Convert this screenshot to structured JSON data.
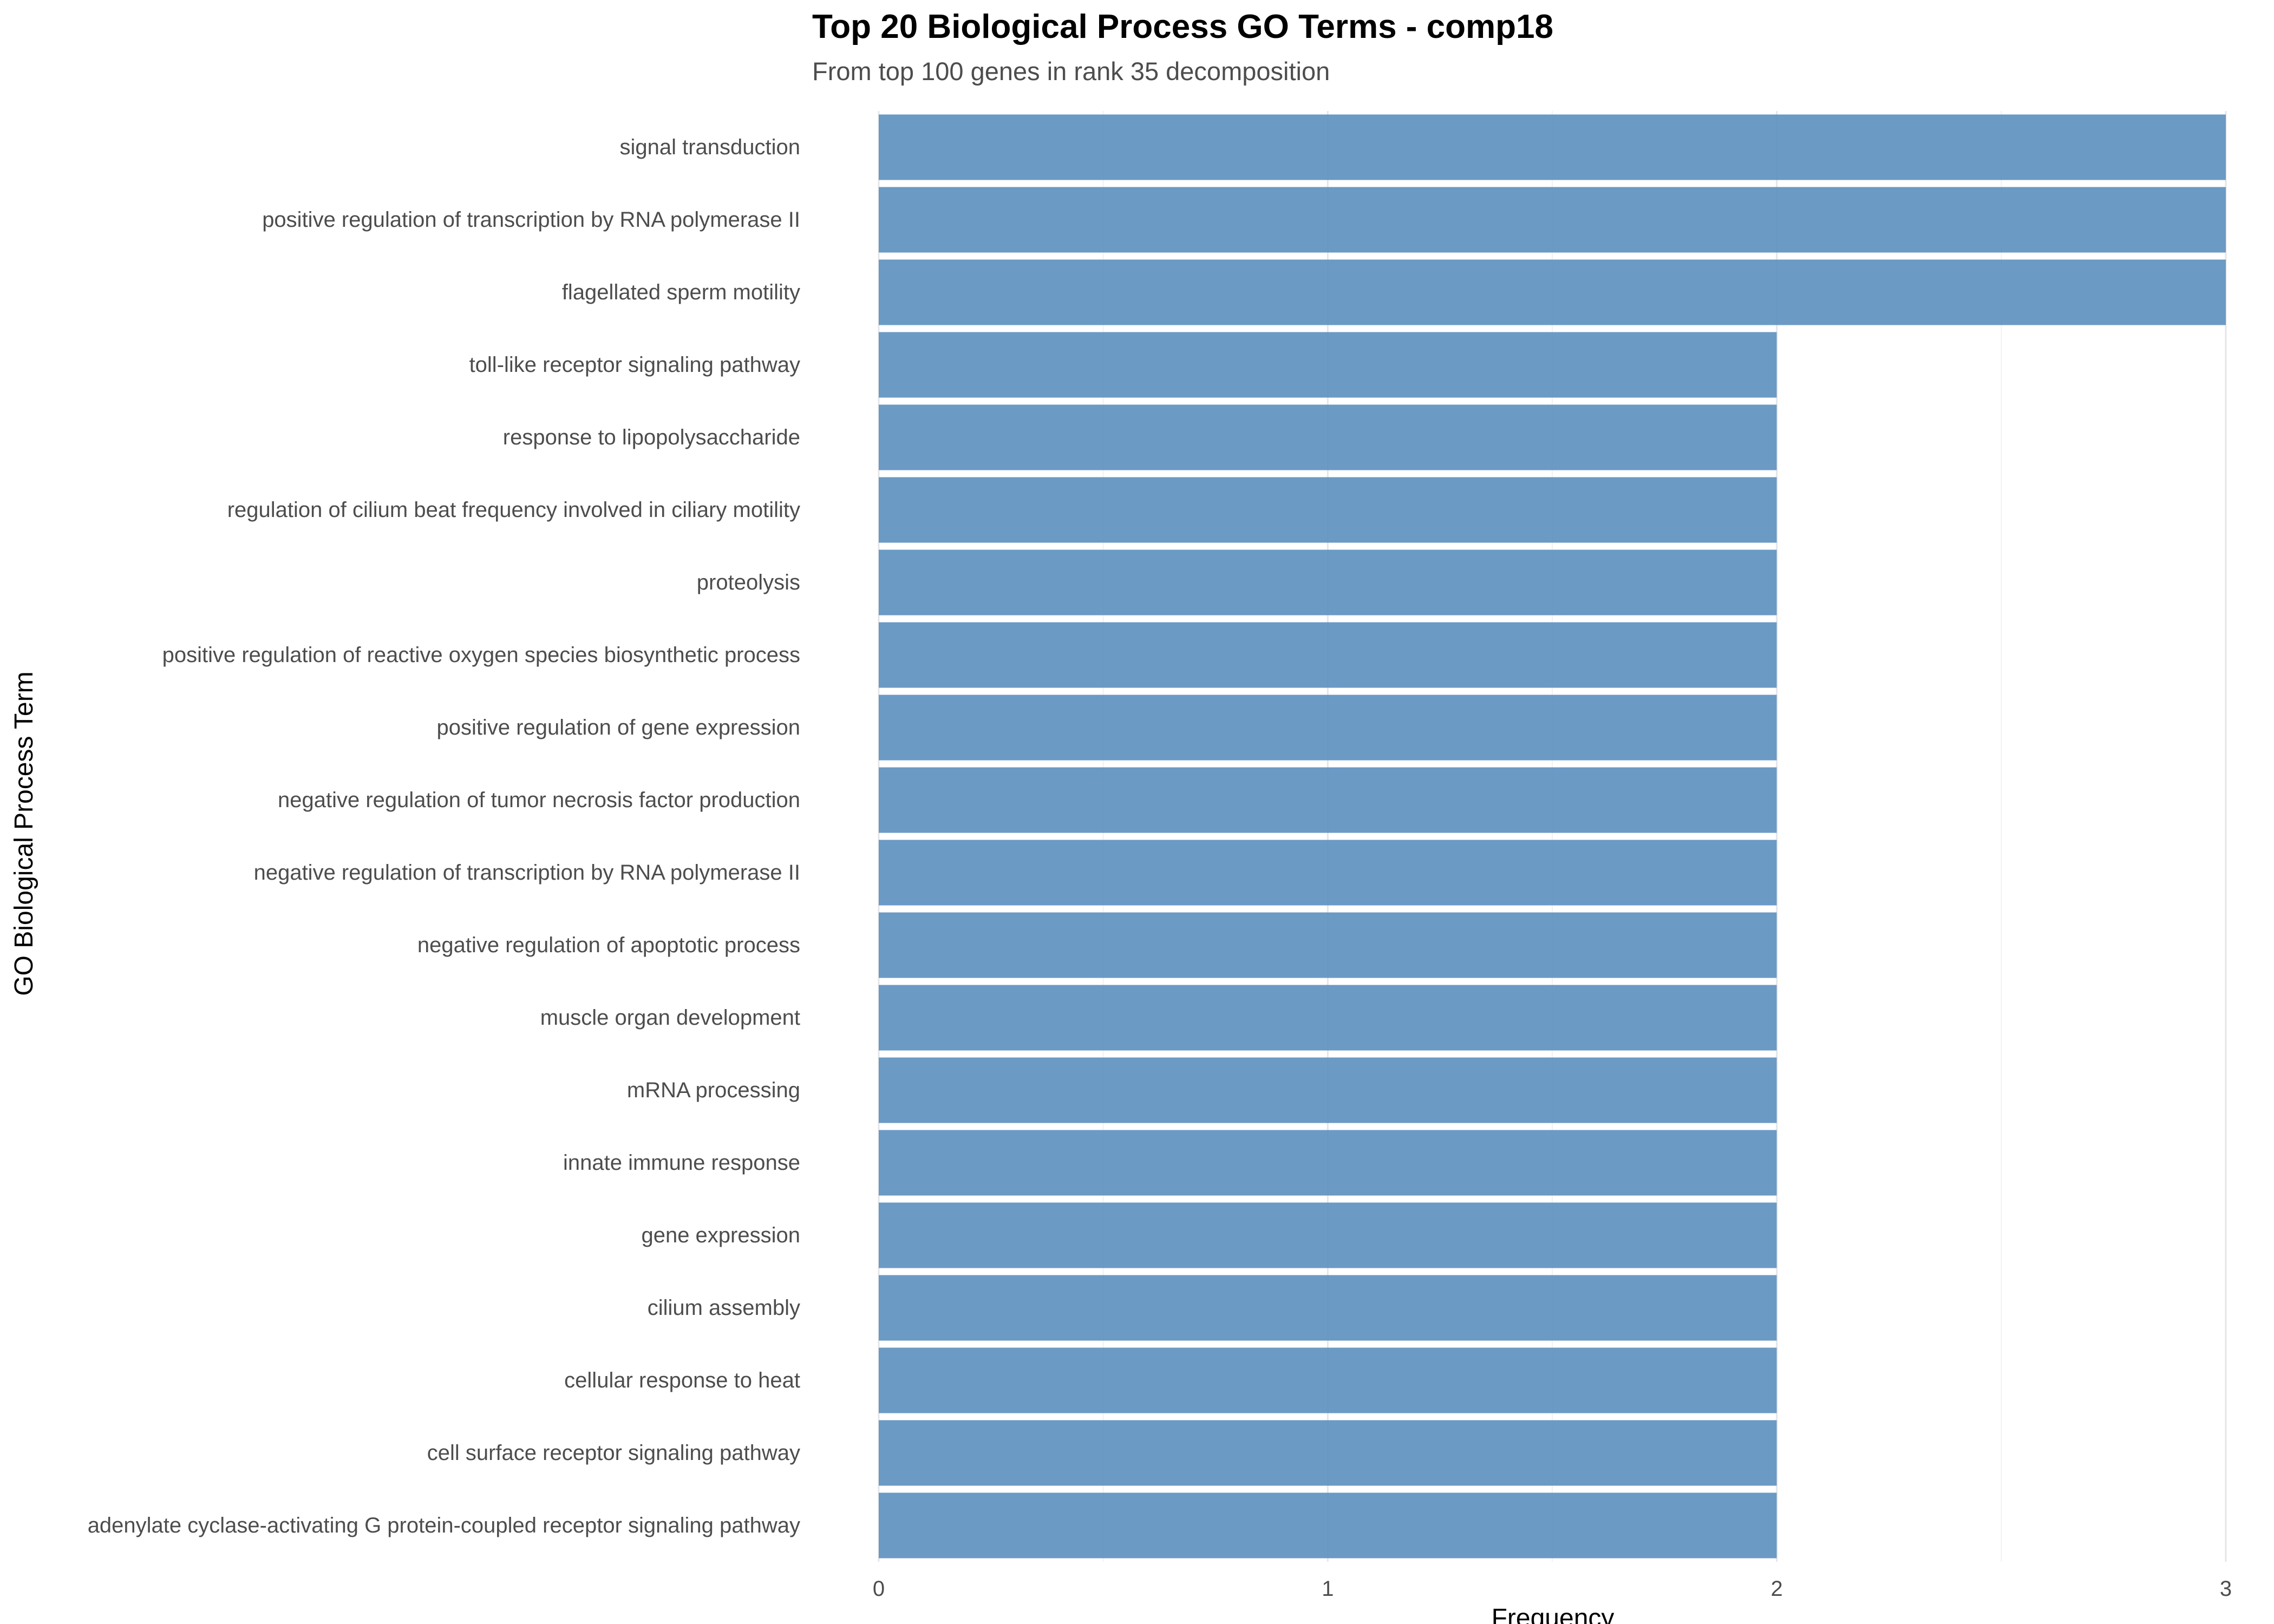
{
  "chart_data": {
    "type": "bar",
    "orientation": "horizontal",
    "title": "Top 20 Biological Process GO Terms - comp18",
    "subtitle": "From top 100 genes in rank 35 decomposition",
    "xlabel": "Frequency",
    "ylabel": "GO Biological Process Term",
    "xlim": [
      0,
      3
    ],
    "xticks": [
      0,
      1,
      2,
      3
    ],
    "grid": true,
    "legend": "none",
    "bar_color": "#5b8fbf",
    "categories": [
      "signal transduction",
      "positive regulation of transcription by RNA polymerase II",
      "flagellated sperm motility",
      "toll-like receptor signaling pathway",
      "response to lipopolysaccharide",
      "regulation of cilium beat frequency involved in ciliary motility",
      "proteolysis",
      "positive regulation of reactive oxygen species biosynthetic process",
      "positive regulation of gene expression",
      "negative regulation of tumor necrosis factor production",
      "negative regulation of transcription by RNA polymerase II",
      "negative regulation of apoptotic process",
      "muscle organ development",
      "mRNA processing",
      "innate immune response",
      "gene expression",
      "cilium assembly",
      "cellular response to heat",
      "cell surface receptor signaling pathway",
      "adenylate cyclase-activating G protein-coupled receptor signaling pathway"
    ],
    "values": [
      3,
      3,
      3,
      2,
      2,
      2,
      2,
      2,
      2,
      2,
      2,
      2,
      2,
      2,
      2,
      2,
      2,
      2,
      2,
      2
    ]
  }
}
